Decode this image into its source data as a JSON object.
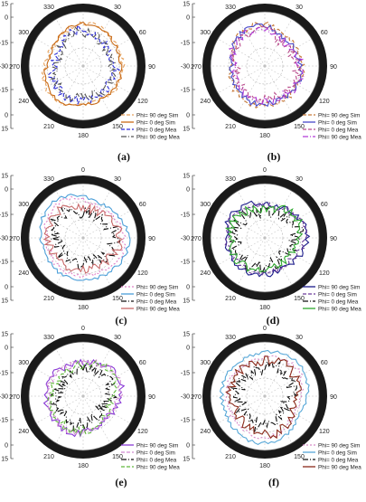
{
  "figure": {
    "captions": [
      "(a)",
      "(b)",
      "(c)",
      "(d)",
      "(e)",
      "(f)"
    ]
  },
  "chart_data": [
    {
      "type": "polar-line",
      "panel": "(a)",
      "angle_ticks": [
        "0",
        "30",
        "60",
        "90",
        "120",
        "150",
        "180",
        "210",
        "240",
        "270",
        "300",
        "330"
      ],
      "radial_ticks": [
        "15",
        "0",
        "-15",
        "-30",
        "-15",
        "0",
        "15"
      ],
      "rlim": [
        -30,
        15
      ],
      "grid": true,
      "legend": "bottom-right",
      "series": [
        {
          "name": "Phi= 90 deg Sim",
          "color": "#e6a15c",
          "dash": "4,2",
          "seed": 11,
          "base": 5,
          "amp": 4
        },
        {
          "name": "Phi= 0 deg Sim",
          "color": "#c86a16",
          "dash": "",
          "seed": 23,
          "base": 4,
          "amp": 3
        },
        {
          "name": "Phi= 0 deg Mea",
          "color": "#2b2bd6",
          "dash": "4,2",
          "seed": 37,
          "base": 1,
          "amp": 8
        },
        {
          "name": "Phi= 90 deg Mea",
          "color": "#555555",
          "dash": "6,2,1,2",
          "seed": 41,
          "base": 0,
          "amp": 9
        }
      ]
    },
    {
      "type": "polar-line",
      "panel": "(b)",
      "angle_ticks": [
        "0",
        "30",
        "60",
        "90",
        "120",
        "150",
        "180",
        "210",
        "240",
        "270",
        "300",
        "330"
      ],
      "radial_ticks": [
        "15",
        "0",
        "-15",
        "-30",
        "-15",
        "0",
        "15"
      ],
      "rlim": [
        -30,
        15
      ],
      "grid": true,
      "legend": "bottom-right",
      "series": [
        {
          "name": "Phi= 90 deg Sim",
          "color": "#c67a3a",
          "dash": "4,2",
          "seed": 53,
          "base": 4,
          "amp": 5
        },
        {
          "name": "Phi= 0 deg Sim",
          "color": "#4848c8",
          "dash": "",
          "seed": 61,
          "base": 3,
          "amp": 5
        },
        {
          "name": "Phi= 0 deg Mea",
          "color": "#b84a8a",
          "dash": "4,2",
          "seed": 71,
          "base": 1,
          "amp": 8
        },
        {
          "name": "Phi= 90 deg Mea",
          "color": "#b23ad6",
          "dash": "6,2,1,2",
          "seed": 83,
          "base": 2,
          "amp": 7
        }
      ]
    },
    {
      "type": "polar-line",
      "panel": "(c)",
      "angle_ticks": [
        "0",
        "30",
        "60",
        "90",
        "120",
        "150",
        "180",
        "210",
        "240",
        "270",
        "300",
        "330"
      ],
      "radial_ticks": [
        "15",
        "0",
        "-15",
        "-30",
        "-15",
        "0",
        "15"
      ],
      "rlim": [
        -30,
        15
      ],
      "grid": true,
      "legend": "bottom-right",
      "series": [
        {
          "name": "Phi= 90 deg Sim",
          "color": "#e080c8",
          "dash": "2,2",
          "seed": 97,
          "base": 4,
          "amp": 4
        },
        {
          "name": "Phi= 0 deg Sim",
          "color": "#4c9fd8",
          "dash": "",
          "seed": 101,
          "base": 7,
          "amp": 3
        },
        {
          "name": "Phi= 0 deg Mea",
          "color": "#111111",
          "dash": "6,2,1,2",
          "seed": 113,
          "base": -1,
          "amp": 12
        },
        {
          "name": "Phi= 90 deg Mea",
          "color": "#c86a6a",
          "dash": "",
          "seed": 127,
          "base": 2,
          "amp": 8
        }
      ]
    },
    {
      "type": "polar-line",
      "panel": "(d)",
      "angle_ticks": [
        "0",
        "30",
        "60",
        "90",
        "120",
        "150",
        "180",
        "210",
        "240",
        "270",
        "300",
        "330"
      ],
      "radial_ticks": [
        "15",
        "0",
        "-15",
        "-30",
        "-15",
        "0",
        "15"
      ],
      "rlim": [
        -30,
        15
      ],
      "grid": true,
      "legend": "bottom-right",
      "series": [
        {
          "name": "Phi= 90 deg Sim",
          "color": "#1a1a8a",
          "dash": "",
          "seed": 131,
          "base": 4,
          "amp": 5
        },
        {
          "name": "Phi= 0 deg Sim",
          "color": "#6a3a9a",
          "dash": "4,2",
          "seed": 139,
          "base": 3,
          "amp": 6
        },
        {
          "name": "Phi= 0 deg Mea",
          "color": "#111111",
          "dash": "6,2,1,2",
          "seed": 149,
          "base": 0,
          "amp": 12
        },
        {
          "name": "Phi= 90 deg Mea",
          "color": "#2ea82e",
          "dash": "",
          "seed": 157,
          "base": 2,
          "amp": 8
        }
      ]
    },
    {
      "type": "polar-line",
      "panel": "(e)",
      "angle_ticks": [
        "0",
        "30",
        "60",
        "90",
        "120",
        "150",
        "180",
        "210",
        "240",
        "270",
        "300",
        "330"
      ],
      "radial_ticks": [
        "15",
        "0",
        "-15",
        "-30",
        "-15",
        "0",
        "15"
      ],
      "rlim": [
        -30,
        15
      ],
      "grid": true,
      "legend": "bottom-right",
      "series": [
        {
          "name": "Phi= 90 deg Sim",
          "color": "#8a3ad6",
          "dash": "",
          "seed": 163,
          "base": 3,
          "amp": 6
        },
        {
          "name": "Phi= 0 deg Sim",
          "color": "#d08ad0",
          "dash": "4,2",
          "seed": 173,
          "base": 2,
          "amp": 5
        },
        {
          "name": "Phi= 0 deg Mea",
          "color": "#111111",
          "dash": "6,2,1,2",
          "seed": 181,
          "base": -2,
          "amp": 12
        },
        {
          "name": "Phi= 90 deg Mea",
          "color": "#5fb83a",
          "dash": "4,2",
          "seed": 191,
          "base": 1,
          "amp": 8
        }
      ]
    },
    {
      "type": "polar-line",
      "panel": "(f)",
      "angle_ticks": [
        "0",
        "30",
        "60",
        "90",
        "120",
        "150",
        "180",
        "210",
        "240",
        "270",
        "300",
        "330"
      ],
      "radial_ticks": [
        "15",
        "0",
        "-15",
        "-30",
        "-15",
        "0",
        "15"
      ],
      "rlim": [
        -30,
        15
      ],
      "grid": true,
      "legend": "bottom-right",
      "series": [
        {
          "name": "Phi= 90 deg Sim",
          "color": "#d68ac8",
          "dash": "2,2",
          "seed": 197,
          "base": 4,
          "amp": 4
        },
        {
          "name": "Phi= 0 deg Sim",
          "color": "#58a8d8",
          "dash": "",
          "seed": 199,
          "base": 8,
          "amp": 3
        },
        {
          "name": "Phi= 0 deg Mea",
          "color": "#111111",
          "dash": "6,2,1,2",
          "seed": 211,
          "base": -1,
          "amp": 12
        },
        {
          "name": "Phi= 90 deg Mea",
          "color": "#8a2a1a",
          "dash": "",
          "seed": 223,
          "base": 3,
          "amp": 8
        }
      ]
    }
  ]
}
